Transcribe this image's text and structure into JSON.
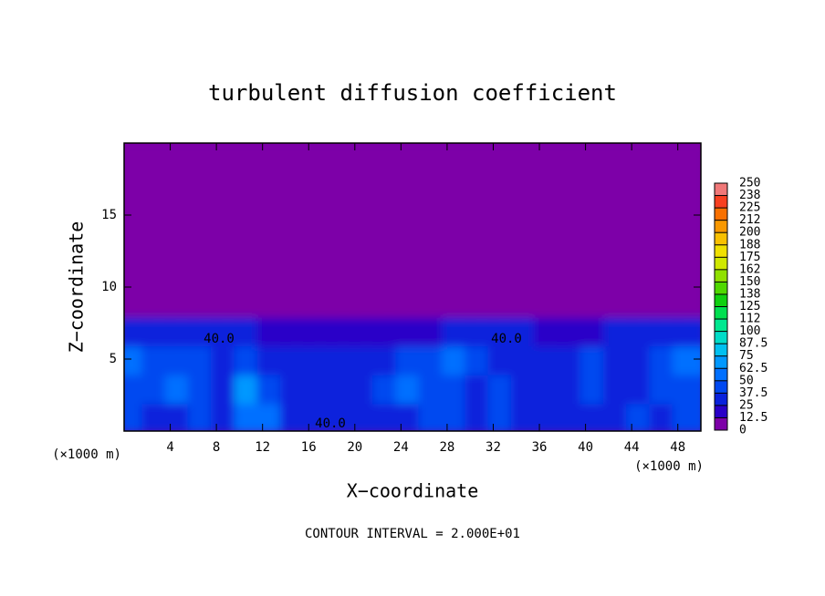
{
  "chart_data": {
    "type": "heatmap",
    "title": "turbulent diffusion coefficient",
    "xlabel": "X−coordinate",
    "ylabel": "Z−coordinate",
    "x_unit_left": "(×1000 m)",
    "x_unit_right": "(×1000 m)",
    "footnote": "CONTOUR INTERVAL = 2.000E+01",
    "contour_labels": [
      "40.0",
      "40.0",
      "40.0"
    ],
    "xlim": [
      0,
      50
    ],
    "ylim": [
      0,
      20
    ],
    "xticks": [
      4,
      8,
      12,
      16,
      20,
      24,
      28,
      32,
      36,
      40,
      44,
      48
    ],
    "yticks": [
      5,
      10,
      15
    ],
    "x_edges": [
      0,
      2,
      4,
      6,
      8,
      10,
      12,
      14,
      16,
      18,
      20,
      22,
      24,
      26,
      28,
      30,
      32,
      34,
      36,
      38,
      40,
      42,
      44,
      46,
      48,
      50
    ],
    "z_edges": [
      0,
      2,
      4,
      6,
      8,
      20
    ],
    "values": [
      [
        37.5,
        30,
        30,
        37.5,
        30,
        50,
        50,
        30,
        30,
        30,
        25,
        25,
        30,
        37.5,
        37.5,
        30,
        37.5,
        30,
        30,
        25,
        30,
        30,
        37.5,
        30,
        37.5
      ],
      [
        37.5,
        37.5,
        50,
        37.5,
        30,
        62.5,
        37.5,
        30,
        25,
        30,
        30,
        37.5,
        50,
        37.5,
        37.5,
        30,
        37.5,
        30,
        30,
        30,
        37.5,
        30,
        30,
        37.5,
        37.5
      ],
      [
        50,
        37.5,
        37.5,
        37.5,
        30,
        37.5,
        30,
        30,
        30,
        30,
        25,
        30,
        37.5,
        37.5,
        50,
        37.5,
        30,
        30,
        30,
        30,
        37.5,
        30,
        30,
        37.5,
        50
      ],
      [
        25,
        30,
        30,
        30,
        30,
        25,
        12.5,
        12.5,
        12.5,
        12.5,
        12.5,
        12.5,
        12.5,
        12.5,
        25,
        30,
        30,
        25,
        12.5,
        12.5,
        12.5,
        25,
        30,
        30,
        35
      ],
      [
        0,
        0,
        0,
        0,
        0,
        0,
        0,
        0,
        0,
        0,
        0,
        0,
        0,
        0,
        0,
        0,
        0,
        0,
        0,
        0,
        0,
        0,
        0,
        0,
        0
      ]
    ],
    "levels": [
      0,
      12.5,
      25,
      37.5,
      50,
      62.5,
      75,
      87.5,
      100,
      112,
      125,
      138,
      150,
      162,
      175,
      188,
      200,
      212,
      225,
      238,
      250
    ],
    "colors": [
      "#7d00a8",
      "#2a00c8",
      "#0a22dc",
      "#0048f0",
      "#0070ff",
      "#0098ff",
      "#00c0f0",
      "#00dcc8",
      "#00e890",
      "#00e050",
      "#10d010",
      "#50d800",
      "#90e000",
      "#d0e800",
      "#f0e000",
      "#f8c000",
      "#f89800",
      "#f87000",
      "#f84020",
      "#f07878"
    ]
  }
}
